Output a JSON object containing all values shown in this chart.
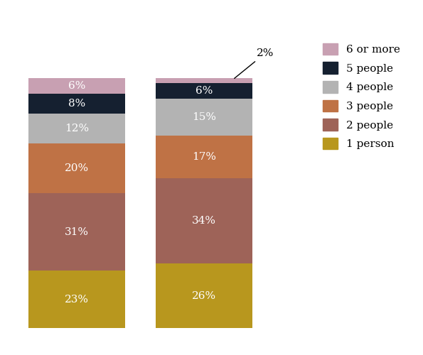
{
  "bars": [
    {
      "values": [
        23,
        31,
        20,
        12,
        8,
        6
      ],
      "labels": [
        "23%",
        "31%",
        "20%",
        "12%",
        "8%",
        "6%"
      ]
    },
    {
      "values": [
        26,
        34,
        17,
        15,
        6,
        2
      ],
      "labels": [
        "26%",
        "34%",
        "17%",
        "15%",
        "6%",
        "2%"
      ]
    }
  ],
  "categories": [
    "1 person",
    "2 people",
    "3 people",
    "4 people",
    "5 people",
    "6 or more"
  ],
  "colors": [
    "#b8971e",
    "#9e6358",
    "#bf7245",
    "#b3b3b3",
    "#152030",
    "#c8a0b2"
  ],
  "bar_width": 0.38,
  "bar_positions": [
    0.22,
    0.72
  ],
  "xlim": [
    -0.05,
    1.55
  ],
  "ylim": [
    -5,
    120
  ],
  "background_color": "#ffffff",
  "text_color": "#ffffff",
  "annotation_2pct": "2%",
  "legend_order": [
    5,
    4,
    3,
    2,
    1,
    0
  ]
}
